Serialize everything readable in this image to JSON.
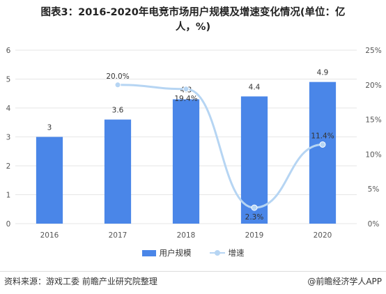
{
  "title": {
    "line1": "图表3：2016-2020年电竞市场用户规模及增速变化情况(单位：亿",
    "line2": "人，%)"
  },
  "legend": {
    "bar_label": "用户规模",
    "line_label": "增速"
  },
  "footer": {
    "source": "资料来源：游戏工委 前瞻产业研究院整理",
    "brand": "@前瞻经济学人APP"
  },
  "colors": {
    "bar": "#4a86e8",
    "line": "#b6d5f3",
    "grid": "#e6e6e6"
  },
  "chart_data": {
    "type": "bar",
    "categories": [
      "2016",
      "2017",
      "2018",
      "2019",
      "2020"
    ],
    "series": [
      {
        "name": "用户规模",
        "type": "bar",
        "axis": "left",
        "values": [
          3,
          3.6,
          4.3,
          4.4,
          4.9
        ],
        "labels": [
          "3",
          "3.6",
          "4.3",
          "4.4",
          "4.9"
        ]
      },
      {
        "name": "增速",
        "type": "line",
        "smooth": true,
        "axis": "right",
        "values": [
          null,
          20.0,
          19.4,
          2.3,
          11.4
        ],
        "labels": [
          "",
          "20.0%",
          "19.4%",
          "2.3%",
          "11.4%"
        ]
      }
    ],
    "y_left": {
      "min": 0,
      "max": 6,
      "ticks": [
        "0",
        "1",
        "2",
        "3",
        "4",
        "5",
        "6"
      ]
    },
    "y_right": {
      "min": 0,
      "max": 25,
      "ticks": [
        "0%",
        "5%",
        "10%",
        "15%",
        "20%",
        "25%"
      ]
    },
    "grid": true,
    "legend_position": "bottom"
  }
}
